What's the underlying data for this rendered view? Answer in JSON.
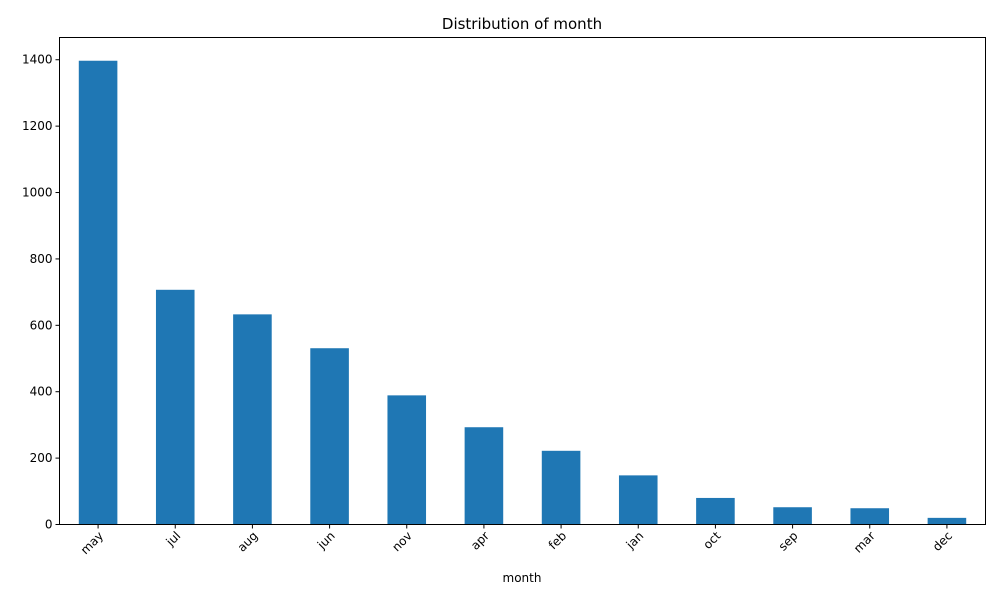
{
  "chart_data": {
    "type": "bar",
    "title": "Distribution of month",
    "xlabel": "month",
    "ylabel": "",
    "categories": [
      "may",
      "jul",
      "aug",
      "jun",
      "nov",
      "apr",
      "feb",
      "jan",
      "oct",
      "sep",
      "mar",
      "dec"
    ],
    "values": [
      1397,
      707,
      633,
      531,
      389,
      293,
      222,
      148,
      80,
      52,
      49,
      20
    ],
    "ylim": [
      0,
      1467
    ],
    "yticks": [
      0,
      200,
      400,
      600,
      800,
      1000,
      1200,
      1400
    ],
    "bar_color": "#1f77b4",
    "grid": false,
    "legend": "none"
  }
}
